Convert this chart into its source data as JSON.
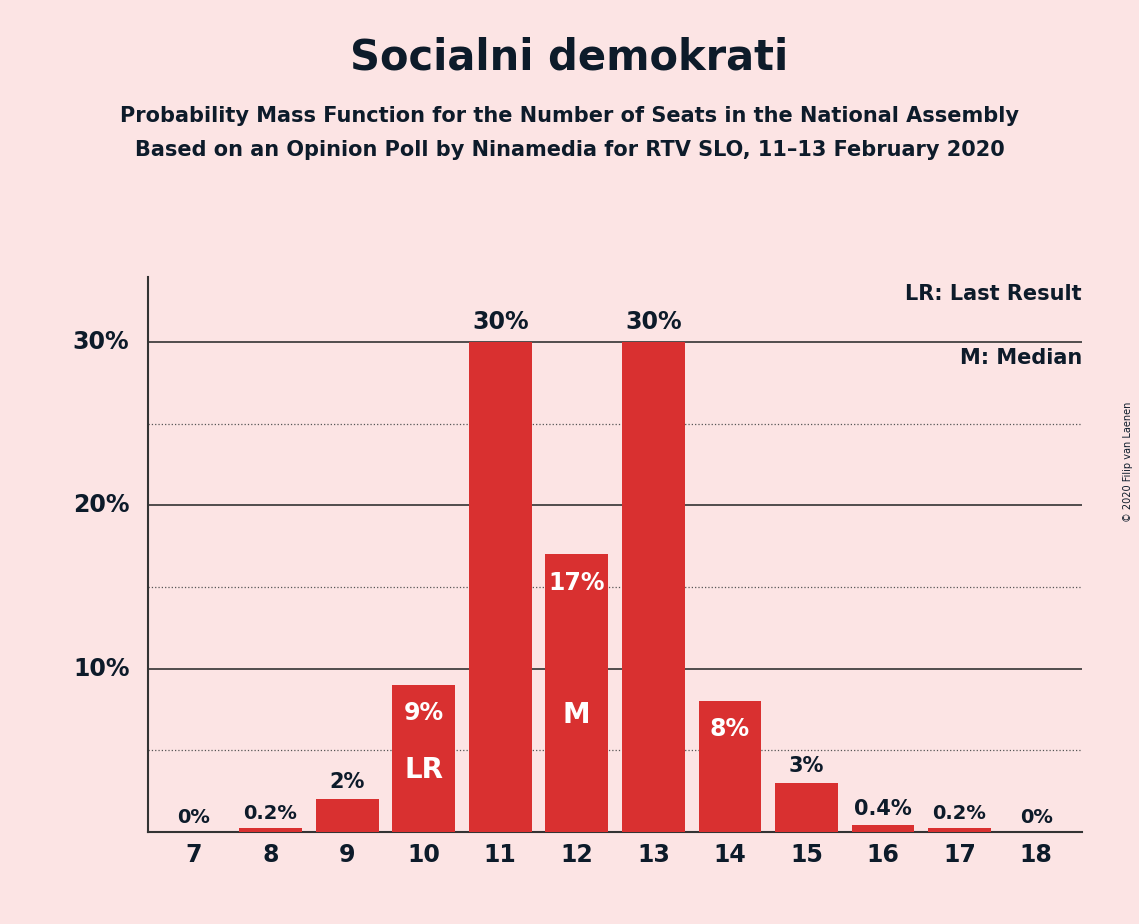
{
  "title": "Socialni demokrati",
  "subtitle1": "Probability Mass Function for the Number of Seats in the National Assembly",
  "subtitle2": "Based on an Opinion Poll by Ninamedia for RTV SLO, 11–13 February 2020",
  "copyright_text": "© 2020 Filip van Laenen",
  "legend_lr": "LR: Last Result",
  "legend_m": "M: Median",
  "seats": [
    7,
    8,
    9,
    10,
    11,
    12,
    13,
    14,
    15,
    16,
    17,
    18
  ],
  "probabilities": [
    0.0,
    0.2,
    2.0,
    9.0,
    30.0,
    17.0,
    30.0,
    8.0,
    3.0,
    0.4,
    0.2,
    0.0
  ],
  "bar_labels": [
    "0%",
    "0.2%",
    "2%",
    "9%",
    "30%",
    "17%",
    "30%",
    "8%",
    "3%",
    "0.4%",
    "0.2%",
    "0%"
  ],
  "last_result_seat": 10,
  "median_seat": 12,
  "bar_color": "#d93030",
  "background_color": "#fce4e4",
  "text_color": "#0d1b2a",
  "bar_label_color_dark": "#0d1b2a",
  "bar_label_color_light": "#ffffff",
  "ylim": [
    0,
    34
  ],
  "dotted_grid_lines": [
    5,
    15,
    25
  ],
  "solid_grid_lines": [
    10,
    20,
    30
  ],
  "title_fontsize": 30,
  "subtitle_fontsize": 15,
  "tick_fontsize": 17,
  "bar_label_fontsize": 15,
  "annotation_fontsize": 15,
  "lr_m_fontsize": 20
}
